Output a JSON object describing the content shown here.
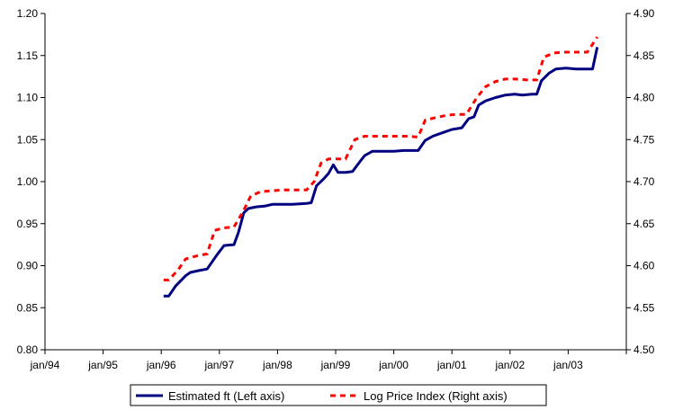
{
  "chart_data": {
    "type": "line",
    "title": "",
    "xlabel": "",
    "ylabel": "",
    "y2label": "",
    "x_tick_labels": [
      "jan/94",
      "jan/95",
      "jan/96",
      "jan/97",
      "jan/98",
      "jan/99",
      "jan/00",
      "jan/01",
      "jan/02",
      "jan/03"
    ],
    "y_left": {
      "ticks": [
        "0.80",
        "0.85",
        "0.90",
        "0.95",
        "1.00",
        "1.05",
        "1.10",
        "1.15",
        "1.20"
      ],
      "range": [
        0.8,
        1.2
      ]
    },
    "y_right": {
      "ticks": [
        "4.50",
        "4.55",
        "4.60",
        "4.65",
        "4.70",
        "4.75",
        "4.80",
        "4.85",
        "4.90"
      ],
      "range": [
        4.5,
        4.9
      ]
    },
    "grid": false,
    "legend_position": "bottom",
    "x_axis_range_years": [
      1994.0,
      2004.0
    ],
    "series": [
      {
        "name": "Estimated ft (Left axis)",
        "axis": "left",
        "color": "#000080",
        "style": "solid",
        "points": [
          [
            1996.04,
            0.864
          ],
          [
            1996.13,
            0.864
          ],
          [
            1996.25,
            0.876
          ],
          [
            1996.42,
            0.888
          ],
          [
            1996.5,
            0.892
          ],
          [
            1996.63,
            0.894
          ],
          [
            1996.79,
            0.896
          ],
          [
            1996.88,
            0.905
          ],
          [
            1996.96,
            0.913
          ],
          [
            1997.08,
            0.924
          ],
          [
            1997.25,
            0.925
          ],
          [
            1997.33,
            0.94
          ],
          [
            1997.42,
            0.963
          ],
          [
            1997.5,
            0.968
          ],
          [
            1997.63,
            0.97
          ],
          [
            1997.79,
            0.971
          ],
          [
            1997.92,
            0.973
          ],
          [
            1998.08,
            0.973
          ],
          [
            1998.25,
            0.973
          ],
          [
            1998.5,
            0.974
          ],
          [
            1998.58,
            0.975
          ],
          [
            1998.67,
            0.995
          ],
          [
            1998.79,
            1.003
          ],
          [
            1998.88,
            1.01
          ],
          [
            1998.96,
            1.02
          ],
          [
            1999.04,
            1.011
          ],
          [
            1999.17,
            1.011
          ],
          [
            1999.29,
            1.012
          ],
          [
            1999.42,
            1.024
          ],
          [
            1999.5,
            1.031
          ],
          [
            1999.63,
            1.036
          ],
          [
            1999.79,
            1.036
          ],
          [
            2000.0,
            1.036
          ],
          [
            2000.17,
            1.037
          ],
          [
            2000.29,
            1.037
          ],
          [
            2000.42,
            1.037
          ],
          [
            2000.54,
            1.049
          ],
          [
            2000.67,
            1.054
          ],
          [
            2000.83,
            1.058
          ],
          [
            2001.0,
            1.062
          ],
          [
            2001.17,
            1.064
          ],
          [
            2001.29,
            1.075
          ],
          [
            2001.38,
            1.077
          ],
          [
            2001.46,
            1.091
          ],
          [
            2001.58,
            1.096
          ],
          [
            2001.75,
            1.1
          ],
          [
            2001.92,
            1.103
          ],
          [
            2002.08,
            1.104
          ],
          [
            2002.21,
            1.103
          ],
          [
            2002.38,
            1.104
          ],
          [
            2002.46,
            1.104
          ],
          [
            2002.54,
            1.12
          ],
          [
            2002.67,
            1.129
          ],
          [
            2002.79,
            1.134
          ],
          [
            2002.96,
            1.135
          ],
          [
            2003.13,
            1.134
          ],
          [
            2003.33,
            1.134
          ],
          [
            2003.42,
            1.134
          ],
          [
            2003.5,
            1.16
          ]
        ]
      },
      {
        "name": "Log Price Index (Right axis)",
        "axis": "right",
        "color": "#ff0000",
        "style": "dashed",
        "points": [
          [
            1996.04,
            4.583
          ],
          [
            1996.13,
            4.583
          ],
          [
            1996.29,
            4.595
          ],
          [
            1996.42,
            4.608
          ],
          [
            1996.63,
            4.612
          ],
          [
            1996.79,
            4.614
          ],
          [
            1996.92,
            4.642
          ],
          [
            1997.08,
            4.645
          ],
          [
            1997.25,
            4.646
          ],
          [
            1997.42,
            4.666
          ],
          [
            1997.54,
            4.683
          ],
          [
            1997.71,
            4.688
          ],
          [
            1997.88,
            4.689
          ],
          [
            1998.08,
            4.69
          ],
          [
            1998.25,
            4.69
          ],
          [
            1998.5,
            4.69
          ],
          [
            1998.63,
            4.7
          ],
          [
            1998.75,
            4.722
          ],
          [
            1998.88,
            4.727
          ],
          [
            1999.04,
            4.727
          ],
          [
            1999.17,
            4.727
          ],
          [
            1999.33,
            4.75
          ],
          [
            1999.5,
            4.754
          ],
          [
            1999.75,
            4.754
          ],
          [
            2000.0,
            4.754
          ],
          [
            2000.25,
            4.754
          ],
          [
            2000.42,
            4.753
          ],
          [
            2000.54,
            4.773
          ],
          [
            2000.71,
            4.776
          ],
          [
            2000.92,
            4.779
          ],
          [
            2001.08,
            4.78
          ],
          [
            2001.25,
            4.78
          ],
          [
            2001.42,
            4.799
          ],
          [
            2001.58,
            4.813
          ],
          [
            2001.75,
            4.819
          ],
          [
            2001.92,
            4.822
          ],
          [
            2002.08,
            4.822
          ],
          [
            2002.29,
            4.821
          ],
          [
            2002.46,
            4.821
          ],
          [
            2002.58,
            4.848
          ],
          [
            2002.75,
            4.853
          ],
          [
            2002.92,
            4.854
          ],
          [
            2003.08,
            4.854
          ],
          [
            2003.33,
            4.854
          ],
          [
            2003.5,
            4.872
          ]
        ]
      }
    ]
  }
}
